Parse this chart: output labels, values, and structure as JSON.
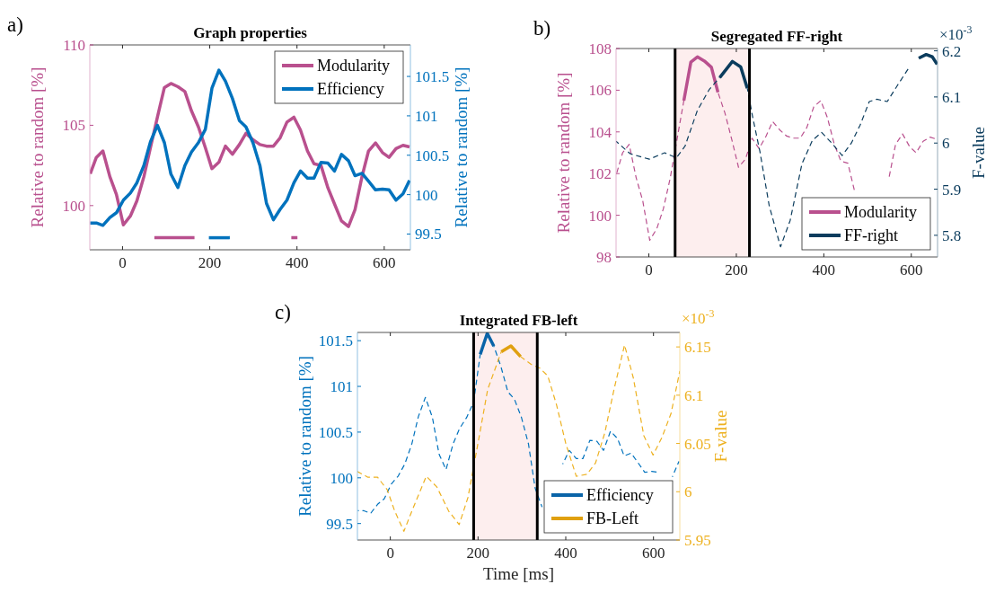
{
  "chart_data": [
    {
      "type": "line",
      "title": "Graph properties",
      "annotations": [
        "a)"
      ],
      "ylabel": "Relative to random [%]",
      "y2label": "Relative to random [%]",
      "xlim": [
        -75,
        660
      ],
      "xticks": [
        0,
        200,
        400,
        600
      ],
      "ylim": [
        97.25,
        110
      ],
      "yticks": [
        100,
        105,
        110
      ],
      "y2lim": [
        99.3,
        101.9
      ],
      "y2ticks": [
        99.5,
        100,
        100.5,
        101,
        101.5
      ],
      "legend": "top right",
      "x": [
        -74,
        -60,
        -45,
        -29,
        -14,
        2,
        18,
        33,
        49,
        64,
        80,
        96,
        111,
        127,
        143,
        158,
        174,
        190,
        205,
        221,
        236,
        252,
        268,
        283,
        299,
        315,
        330,
        346,
        361,
        377,
        393,
        408,
        424,
        439,
        455,
        471,
        486,
        502,
        518,
        533,
        549,
        564,
        580,
        596,
        611,
        627,
        643,
        658
      ],
      "series": [
        {
          "name": "Modularity",
          "color": "#b9508e",
          "line_style": "solid",
          "values": [
            101.98,
            103.0,
            103.4,
            101.8,
            100.7,
            98.8,
            99.35,
            100.3,
            101.8,
            103.6,
            105.5,
            107.35,
            107.6,
            107.4,
            107.1,
            105.9,
            104.9,
            103.6,
            102.3,
            102.7,
            103.7,
            103.2,
            103.8,
            104.5,
            104.1,
            103.8,
            103.7,
            103.7,
            104.2,
            105.2,
            105.5,
            104.7,
            103.4,
            102.6,
            102.5,
            101.1,
            100.1,
            99.05,
            98.7,
            99.75,
            101.8,
            103.4,
            103.9,
            103.3,
            103.0,
            103.55,
            103.75,
            103.65
          ]
        },
        {
          "name": "Efficiency",
          "color": "#0072bd",
          "axis": "y2",
          "line_style": "solid",
          "values": [
            99.64,
            99.64,
            99.61,
            99.71,
            99.77,
            99.93,
            100.02,
            100.15,
            100.37,
            100.67,
            100.88,
            100.66,
            100.26,
            100.09,
            100.37,
            100.54,
            100.66,
            100.83,
            101.35,
            101.58,
            101.44,
            101.22,
            100.94,
            100.86,
            100.66,
            100.37,
            99.89,
            99.68,
            99.81,
            99.93,
            100.15,
            100.3,
            100.21,
            100.21,
            100.41,
            100.4,
            100.3,
            100.51,
            100.43,
            100.24,
            100.27,
            100.17,
            100.06,
            100.07,
            100.06,
            99.93,
            100.01,
            100.18
          ]
        },
        {
          "color": "#b9508e",
          "line_style": "solid",
          "x": [
            73,
            165,
            166,
            387,
            401
          ],
          "values": [
            98,
            98,
            null,
            98,
            98
          ]
        },
        {
          "color": "#0072bd",
          "line_style": "solid",
          "x": [
            198,
            246
          ],
          "values": [
            98,
            98
          ]
        }
      ]
    },
    {
      "type": "line",
      "title": "Segregated FF-right",
      "annotations": [
        "b)",
        "×10$^{-3}$"
      ],
      "ylabel": "Relative to random [%]",
      "y2label": "F-value",
      "xlim": [
        -75,
        660
      ],
      "xticks": [
        0,
        200,
        400,
        600
      ],
      "ylim": [
        98,
        108
      ],
      "yticks": [
        98,
        100,
        102,
        104,
        106,
        108
      ],
      "y2lim": [
        5.753,
        6.205
      ],
      "y2ticks": [
        5.8,
        5.9,
        6,
        6.1,
        6.2
      ],
      "legend": "bottom right",
      "ref_lines": [
        {
          "axis": "x",
          "value": 60,
          "color": "#000000"
        },
        {
          "axis": "x",
          "value": 230,
          "color": "#000000"
        }
      ],
      "bands": [
        {
          "axis": "x",
          "from": 60,
          "to": 230,
          "color": "#fdeeee"
        }
      ],
      "x": [
        -74,
        -60,
        -45,
        -29,
        -14,
        2,
        18,
        33,
        49,
        64,
        80,
        96,
        111,
        127,
        143,
        158,
        174,
        190,
        205,
        221,
        236,
        252,
        268,
        283,
        299,
        315,
        330,
        346,
        361,
        377,
        393,
        408,
        424,
        439,
        455,
        471,
        486,
        502,
        518,
        533,
        549,
        564,
        580,
        596,
        611,
        627,
        643,
        658
      ],
      "series": [
        {
          "color": "#b9508e",
          "line_style": "dashed",
          "values": [
            101.98,
            103.0,
            103.4,
            101.8,
            100.7,
            98.8,
            99.35,
            100.3,
            101.8,
            103.6,
            105.5,
            null,
            null,
            null,
            null,
            105.9,
            104.9,
            103.6,
            102.3,
            102.7,
            103.7,
            103.2,
            103.8,
            104.5,
            104.1,
            103.8,
            103.7,
            103.7,
            104.2,
            105.2,
            105.5,
            104.7,
            103.4,
            102.6,
            102.5,
            101.1,
            null,
            null,
            null,
            null,
            101.8,
            103.4,
            103.9,
            103.3,
            103.0,
            103.55,
            103.75,
            103.65
          ]
        },
        {
          "name": "Modularity",
          "color": "#b9508e",
          "line_style": "solid",
          "values": [
            null,
            null,
            null,
            null,
            null,
            null,
            null,
            null,
            null,
            null,
            105.5,
            107.35,
            107.6,
            107.4,
            107.1,
            105.9,
            null,
            null,
            null,
            null,
            null,
            null,
            null,
            null,
            null,
            null,
            null,
            null,
            null,
            null,
            null,
            null,
            null,
            null,
            null,
            null,
            null,
            null,
            null,
            null,
            null,
            null,
            null,
            null,
            null,
            null,
            null,
            null
          ]
        },
        {
          "color": "#0b3c5d",
          "axis": "y2",
          "line_style": "dashed",
          "x": [
            -75,
            -43,
            1,
            36,
            63,
            83,
            111,
            138,
            162,
            191,
            210,
            225,
            237,
            254,
            275,
            301,
            323,
            350,
            374,
            395,
            418,
            442,
            463,
            483,
            504,
            521,
            545,
            569,
            593
          ],
          "values": [
            6.004,
            5.977,
            5.965,
            5.979,
            5.968,
            5.994,
            6.071,
            6.116,
            6.142,
            null,
            null,
            6.119,
            6.058,
            5.981,
            5.865,
            5.775,
            5.832,
            5.955,
            6.006,
            6.023,
            6.0,
            5.973,
            6.0,
            6.039,
            6.09,
            6.095,
            6.09,
            6.126,
            6.161
          ]
        },
        {
          "name": "FF-right",
          "color": "#0b3c5d",
          "axis": "y2",
          "line_style": "solid",
          "x": [
            162,
            191,
            210,
            225,
            593,
            617,
            634,
            648,
            659
          ],
          "values": [
            6.142,
            6.177,
            6.165,
            6.119,
            null,
            6.184,
            6.192,
            6.187,
            6.171
          ]
        }
      ]
    },
    {
      "type": "line",
      "title": "Integrated FB-left",
      "annotations": [
        "c)",
        "×10$^{-3}$"
      ],
      "xlabel": "Time [ms]",
      "ylabel": "Relative to random [%]",
      "y2label": "F-value",
      "xlim": [
        -75,
        660
      ],
      "xticks": [
        0,
        200,
        400,
        600
      ],
      "ylim": [
        99.32,
        101.59
      ],
      "yticks": [
        99.5,
        100,
        100.5,
        101,
        101.5
      ],
      "y2lim": [
        5.95,
        6.165
      ],
      "y2ticks": [
        5.95,
        6,
        6.05,
        6.1,
        6.15
      ],
      "legend": "bottom right",
      "ref_lines": [
        {
          "axis": "x",
          "value": 190,
          "color": "#000000"
        },
        {
          "axis": "x",
          "value": 335,
          "color": "#000000"
        }
      ],
      "bands": [
        {
          "axis": "x",
          "from": 190,
          "to": 335,
          "color": "#fdeeee"
        }
      ],
      "x": [
        -74,
        -60,
        -45,
        -29,
        -14,
        2,
        18,
        33,
        49,
        64,
        80,
        96,
        111,
        127,
        143,
        158,
        174,
        190,
        205,
        221,
        236,
        252,
        268,
        283,
        299,
        315,
        330,
        346,
        361,
        377,
        393,
        408,
        424,
        439,
        455,
        471,
        486,
        502,
        518,
        533,
        549,
        564,
        580,
        596,
        611,
        627,
        643,
        658
      ],
      "series": [
        {
          "color": "#0072bd",
          "line_style": "dashed",
          "values": [
            99.64,
            99.64,
            99.61,
            99.71,
            99.77,
            99.93,
            100.02,
            100.15,
            100.37,
            100.67,
            100.88,
            100.66,
            100.26,
            100.09,
            100.37,
            100.54,
            100.66,
            100.83,
            101.35,
            null,
            101.44,
            101.22,
            100.94,
            100.86,
            100.66,
            100.37,
            99.89,
            99.68,
            null,
            null,
            100.15,
            100.3,
            100.21,
            100.21,
            100.41,
            100.4,
            100.3,
            100.51,
            100.43,
            100.24,
            100.27,
            100.17,
            100.06,
            100.07,
            100.06,
            null,
            100.01,
            100.18
          ]
        },
        {
          "name": "Efficiency",
          "color": "#0a64a8",
          "line_style": "solid",
          "values": [
            null,
            null,
            null,
            null,
            null,
            null,
            null,
            null,
            null,
            null,
            null,
            null,
            null,
            null,
            null,
            null,
            null,
            null,
            101.35,
            101.58,
            101.44,
            null,
            null,
            null,
            null,
            null,
            null,
            null,
            null,
            null,
            null,
            null,
            null,
            null,
            null,
            null,
            null,
            null,
            null,
            null,
            null,
            null,
            null,
            null,
            null,
            null,
            null,
            null
          ]
        },
        {
          "color": "#edb120",
          "axis": "y2",
          "line_style": "dashed",
          "x": [
            -75,
            -51,
            -29,
            -7,
            10,
            31,
            51,
            82,
            106,
            133,
            157,
            177,
            201,
            222,
            253,
            275,
            297,
            321,
            341,
            359,
            379,
            400,
            424,
            448,
            468,
            489,
            510,
            534,
            554,
            578,
            599,
            619,
            640,
            660
          ],
          "values": [
            6.021,
            6.015,
            6.015,
            6.002,
            5.98,
            5.959,
            5.982,
            6.016,
            6.005,
            5.98,
            5.966,
            5.994,
            6.053,
            6.106,
            6.145,
            null,
            6.14,
            6.132,
            6.128,
            6.12,
            6.09,
            6.05,
            6.016,
            6.018,
            6.03,
            6.061,
            6.106,
            6.152,
            6.118,
            6.058,
            6.038,
            6.056,
            6.081,
            6.125
          ]
        },
        {
          "name": "FB-Left",
          "color": "#e0a010",
          "axis": "y2",
          "line_style": "solid",
          "x": [
            253,
            275,
            297
          ],
          "values": [
            6.145,
            6.151,
            6.14
          ]
        }
      ]
    }
  ]
}
